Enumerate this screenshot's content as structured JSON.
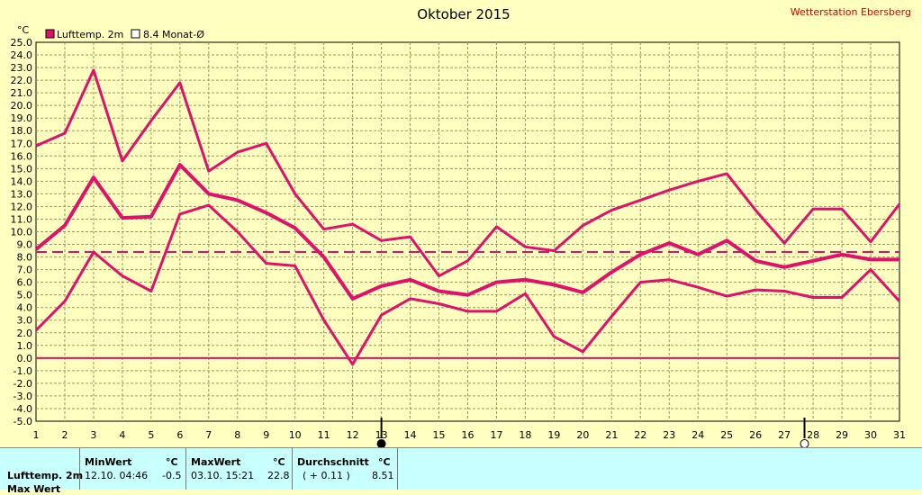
{
  "header": {
    "title": "Oktober 2015",
    "station": "Wetterstation Ebersberg",
    "unit": "°C"
  },
  "legend": [
    {
      "label": "Lufttemp. 2m",
      "color": "#e0106b",
      "filled": true
    },
    {
      "label": "8.4 Monat-Ø",
      "color": "#e0106b",
      "filled": false
    }
  ],
  "chart_data": {
    "type": "line",
    "title": "Oktober 2015",
    "ylabel": "°C",
    "ylim": [
      -5,
      25
    ],
    "ytick_step": 1,
    "xlim": [
      1,
      31
    ],
    "x": [
      1,
      2,
      3,
      4,
      5,
      6,
      7,
      8,
      9,
      10,
      11,
      12,
      13,
      14,
      15,
      16,
      17,
      18,
      19,
      20,
      21,
      22,
      23,
      24,
      25,
      26,
      27,
      28,
      29,
      30,
      31
    ],
    "grid": true,
    "legend_position": "top-left",
    "series": [
      {
        "role": "max",
        "values": [
          16.8,
          17.8,
          22.8,
          15.6,
          18.8,
          21.8,
          14.8,
          16.3,
          17.0,
          13.0,
          10.2,
          10.6,
          9.3,
          9.6,
          6.5,
          7.7,
          10.4,
          8.8,
          8.5,
          10.5,
          11.7,
          12.5,
          13.3,
          14.0,
          14.6,
          11.7,
          9.1,
          11.8,
          11.8,
          9.2,
          12.2
        ]
      },
      {
        "role": "mean",
        "values": [
          8.6,
          10.5,
          14.3,
          11.1,
          11.2,
          15.3,
          13.0,
          12.5,
          11.5,
          10.3,
          8.0,
          4.7,
          5.7,
          6.2,
          5.3,
          5.0,
          6.0,
          6.2,
          5.8,
          5.2,
          6.8,
          8.2,
          9.1,
          8.2,
          9.3,
          7.7,
          7.2,
          7.7,
          8.2,
          7.8,
          7.8
        ]
      },
      {
        "role": "min",
        "values": [
          2.2,
          4.5,
          8.4,
          6.5,
          5.3,
          11.4,
          12.1,
          10.0,
          7.5,
          7.3,
          3.0,
          -0.5,
          3.4,
          4.7,
          4.3,
          3.7,
          3.7,
          5.1,
          1.7,
          0.5,
          3.3,
          6.0,
          6.2,
          5.6,
          4.9,
          5.4,
          5.3,
          4.8,
          4.8,
          7.0,
          4.5
        ]
      }
    ],
    "reference_line": {
      "value": 8.4
    },
    "moon_phases": [
      {
        "phase": "new",
        "day": 13
      },
      {
        "phase": "full",
        "day": 27.7
      }
    ]
  },
  "stats": {
    "row_label": "Lufttemp. 2m",
    "row2_label": "Max Wert",
    "min_header": "MinWert",
    "min_unit": "°C",
    "min_time": "12.10.  04:46",
    "min_value": "-0.5",
    "max_header": "MaxWert",
    "max_unit": "°C",
    "max_time": "03.10.  15:21",
    "max_value": "22.8",
    "avg_header": "Durchschnitt",
    "avg_unit": "°C",
    "avg_delta": "( + 0.11 )",
    "avg_value": "8.51"
  }
}
